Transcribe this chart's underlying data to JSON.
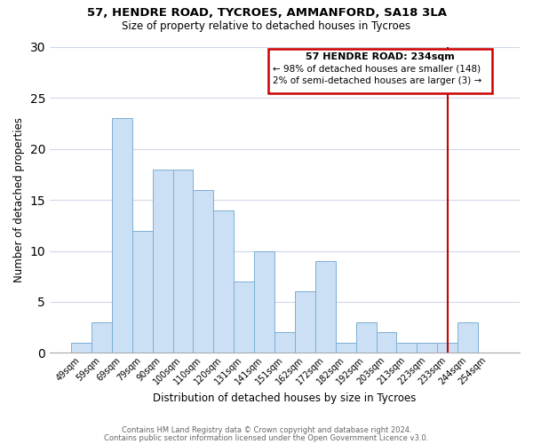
{
  "title": "57, HENDRE ROAD, TYCROES, AMMANFORD, SA18 3LA",
  "subtitle": "Size of property relative to detached houses in Tycroes",
  "xlabel": "Distribution of detached houses by size in Tycroes",
  "ylabel": "Number of detached properties",
  "bar_labels": [
    "49sqm",
    "59sqm",
    "69sqm",
    "79sqm",
    "90sqm",
    "100sqm",
    "110sqm",
    "120sqm",
    "131sqm",
    "141sqm",
    "151sqm",
    "162sqm",
    "172sqm",
    "182sqm",
    "192sqm",
    "203sqm",
    "213sqm",
    "223sqm",
    "233sqm",
    "244sqm",
    "254sqm"
  ],
  "bar_values": [
    1,
    3,
    23,
    12,
    18,
    18,
    16,
    14,
    7,
    10,
    2,
    6,
    9,
    1,
    3,
    2,
    1,
    1,
    1,
    3,
    0
  ],
  "bar_color": "#cce0f5",
  "bar_edge_color": "#7bafd4",
  "ylim": [
    0,
    30
  ],
  "yticks": [
    0,
    5,
    10,
    15,
    20,
    25,
    30
  ],
  "property_line_label": "57 HENDRE ROAD: 234sqm",
  "annotation_smaller": "← 98% of detached houses are smaller (148)",
  "annotation_larger": "2% of semi-detached houses are larger (3) →",
  "line_color": "#cc0000",
  "box_color": "#cc0000",
  "footer1": "Contains HM Land Registry data © Crown copyright and database right 2024.",
  "footer2": "Contains public sector information licensed under the Open Government Licence v3.0.",
  "background_color": "#ffffff",
  "grid_color": "#d0d8e8"
}
